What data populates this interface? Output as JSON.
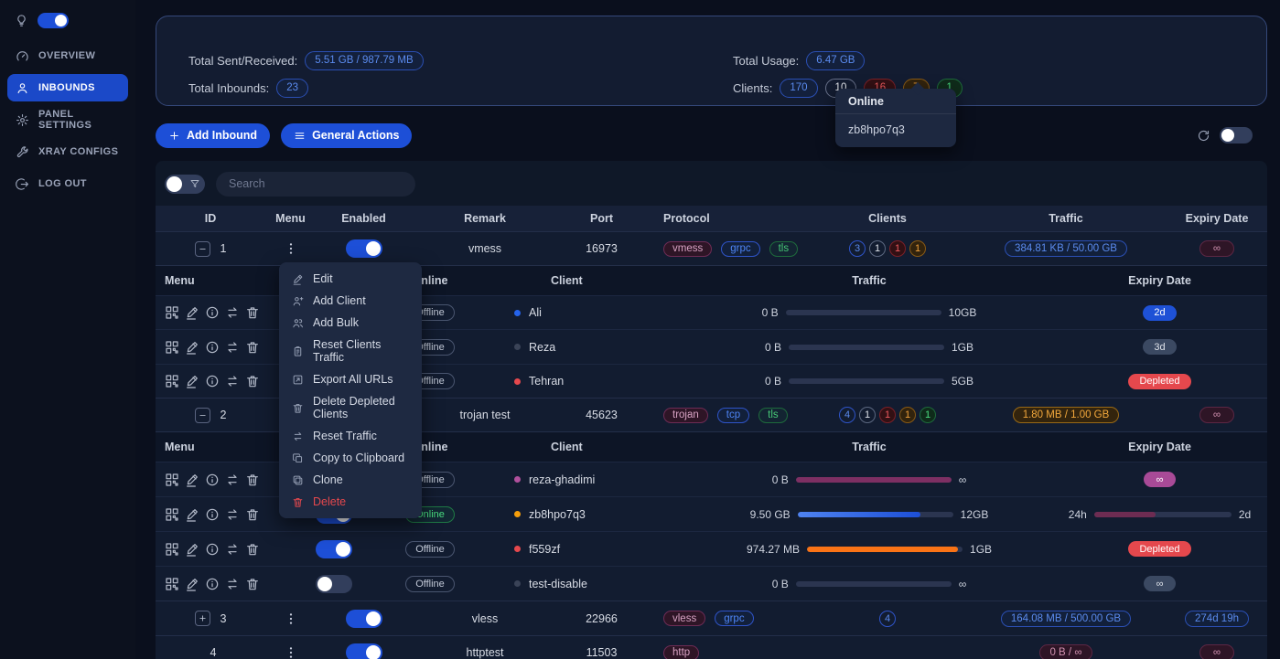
{
  "sidebar": {
    "items": [
      {
        "label": "OVERVIEW"
      },
      {
        "label": "INBOUNDS"
      },
      {
        "label": "PANEL SETTINGS"
      },
      {
        "label": "XRAY CONFIGS"
      },
      {
        "label": "LOG OUT"
      }
    ]
  },
  "stats": {
    "sent_label": "Total Sent/Received:",
    "sent_value": "5.51 GB / 987.79 MB",
    "inbounds_label": "Total Inbounds:",
    "inbounds_value": "23",
    "usage_label": "Total Usage:",
    "usage_value": "6.47 GB",
    "clients_label": "Clients:",
    "client_counts": [
      "170",
      "10",
      "16",
      "7",
      "1"
    ]
  },
  "popover": {
    "title": "Online",
    "client": "zb8hpo7q3"
  },
  "toolbar": {
    "add_inbound": "Add Inbound",
    "general_actions": "General Actions"
  },
  "search": {
    "placeholder": "Search"
  },
  "table": {
    "headers": {
      "id": "ID",
      "menu": "Menu",
      "enabled": "Enabled",
      "remark": "Remark",
      "port": "Port",
      "protocol": "Protocol",
      "clients": "Clients",
      "traffic": "Traffic",
      "expiry": "Expiry Date"
    },
    "sub": {
      "menu": "Menu",
      "online": "Online",
      "client": "Client",
      "traffic": "Traffic",
      "expiry": "Expiry Date"
    }
  },
  "menu": {
    "items": [
      "Edit",
      "Add Client",
      "Add Bulk",
      "Reset Clients Traffic",
      "Export All URLs",
      "Delete Depleted Clients",
      "Reset Traffic",
      "Copy to Clipboard",
      "Clone",
      "Delete"
    ]
  },
  "inbounds": {
    "i1": {
      "id": "1",
      "remark": "vmess",
      "port": "16973",
      "tags": [
        "vmess",
        "grpc",
        "tls"
      ],
      "clients": [
        "3",
        "1",
        "1",
        "1"
      ],
      "traffic": "384.81 KB / 50.00 GB",
      "expiry": "∞"
    },
    "i2": {
      "id": "2",
      "remark": "trojan test",
      "port": "45623",
      "tags": [
        "trojan",
        "tcp",
        "tls"
      ],
      "clients": [
        "4",
        "1",
        "1",
        "1",
        "1"
      ],
      "traffic": "1.80 MB / 1.00 GB",
      "expiry": "∞"
    },
    "i3": {
      "id": "3",
      "remark": "vless",
      "port": "22966",
      "tags": [
        "vless",
        "grpc"
      ],
      "clients": [
        "4"
      ],
      "traffic": "164.08 MB / 500.00 GB",
      "expiry": "274d 19h"
    },
    "i4": {
      "id": "4",
      "remark": "httptest",
      "port": "11503",
      "tags": [
        "http"
      ],
      "traffic": "0 B / ∞",
      "expiry": "∞"
    }
  },
  "clients": {
    "ali": {
      "status": "Offline",
      "name": "Ali",
      "used": "0 B",
      "cap": "10GB",
      "bar": 0,
      "expiry": "2d"
    },
    "reza": {
      "status": "Offline",
      "name": "Reza",
      "used": "0 B",
      "cap": "1GB",
      "bar": 0,
      "expiry": "3d"
    },
    "tehran": {
      "status": "Offline",
      "name": "Tehran",
      "used": "0 B",
      "cap": "5GB",
      "bar": 0,
      "expiry": "Depleted"
    },
    "rg": {
      "status": "Offline",
      "name": "reza-ghadimi",
      "used": "0 B",
      "cap": "∞",
      "bar": 100,
      "expiry": "∞"
    },
    "zb": {
      "status": "Online",
      "name": "zb8hpo7q3",
      "used": "9.50 GB",
      "cap": "12GB",
      "bar": 79,
      "expiry_from": "24h",
      "expiry_to": "2d",
      "expiry_bar": 45
    },
    "f5": {
      "status": "Offline",
      "name": "f559zf",
      "used": "974.27 MB",
      "cap": "1GB",
      "bar": 97,
      "expiry": "Depleted"
    },
    "td": {
      "status": "Offline",
      "name": "test-disable",
      "used": "0 B",
      "cap": "∞",
      "bar": 0,
      "expiry": "∞"
    }
  }
}
